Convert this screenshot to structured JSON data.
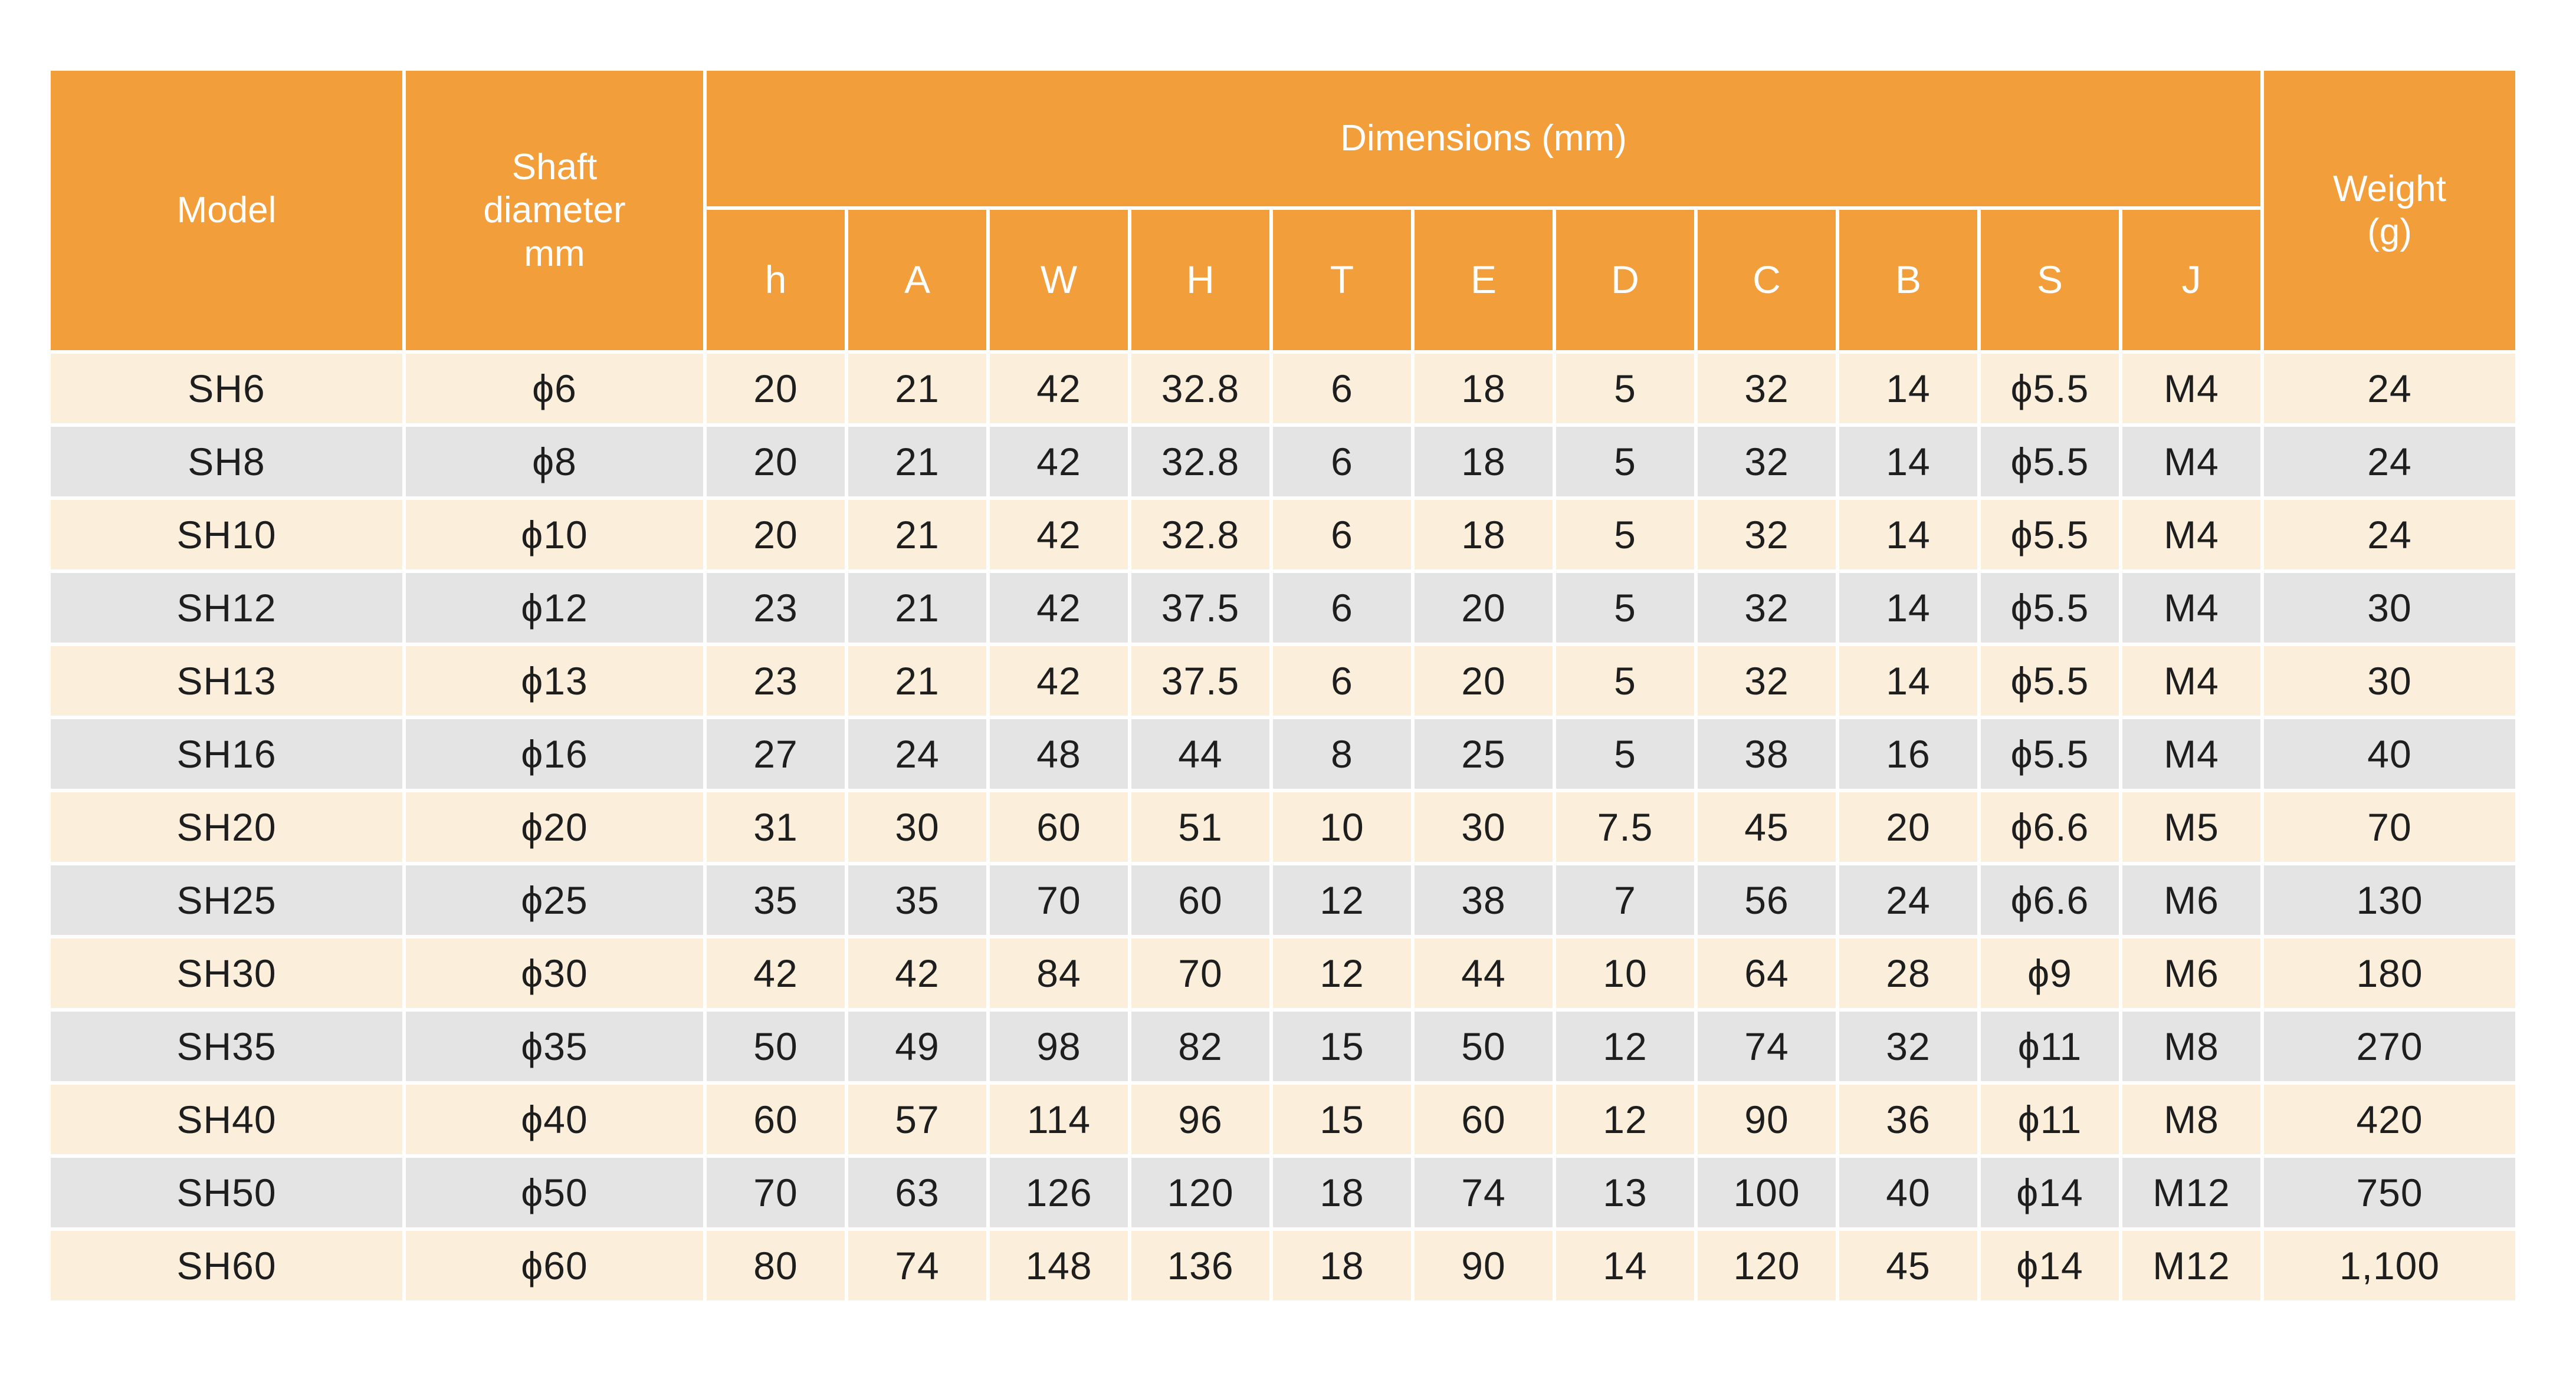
{
  "colors": {
    "page_bg": "#FFFFFF",
    "header_bg": "#F19E3B",
    "header_text": "#FFFFFF",
    "row_cream": "#FBEFDB",
    "row_gray": "#E4E4E5",
    "text_dark": "#1E1E1E"
  },
  "chart_data": {
    "type": "table",
    "header": {
      "model": "Model",
      "shaft_diameter": "Shaft\ndiameter\nmm",
      "dimensions_group": "Dimensions (mm)",
      "dimension_columns": [
        "h",
        "A",
        "W",
        "H",
        "T",
        "E",
        "D",
        "C",
        "B",
        "S",
        "J"
      ],
      "weight": "Weight\n(g)"
    },
    "rows": [
      {
        "model": "SH6",
        "shaft_diameter": "ϕ6",
        "dims": [
          "20",
          "21",
          "42",
          "32.8",
          "6",
          "18",
          "5",
          "32",
          "14",
          "ϕ5.5",
          "M4"
        ],
        "weight": "24"
      },
      {
        "model": "SH8",
        "shaft_diameter": "ϕ8",
        "dims": [
          "20",
          "21",
          "42",
          "32.8",
          "6",
          "18",
          "5",
          "32",
          "14",
          "ϕ5.5",
          "M4"
        ],
        "weight": "24"
      },
      {
        "model": "SH10",
        "shaft_diameter": "ϕ10",
        "dims": [
          "20",
          "21",
          "42",
          "32.8",
          "6",
          "18",
          "5",
          "32",
          "14",
          "ϕ5.5",
          "M4"
        ],
        "weight": "24"
      },
      {
        "model": "SH12",
        "shaft_diameter": "ϕ12",
        "dims": [
          "23",
          "21",
          "42",
          "37.5",
          "6",
          "20",
          "5",
          "32",
          "14",
          "ϕ5.5",
          "M4"
        ],
        "weight": "30"
      },
      {
        "model": "SH13",
        "shaft_diameter": "ϕ13",
        "dims": [
          "23",
          "21",
          "42",
          "37.5",
          "6",
          "20",
          "5",
          "32",
          "14",
          "ϕ5.5",
          "M4"
        ],
        "weight": "30"
      },
      {
        "model": "SH16",
        "shaft_diameter": "ϕ16",
        "dims": [
          "27",
          "24",
          "48",
          "44",
          "8",
          "25",
          "5",
          "38",
          "16",
          "ϕ5.5",
          "M4"
        ],
        "weight": "40"
      },
      {
        "model": "SH20",
        "shaft_diameter": "ϕ20",
        "dims": [
          "31",
          "30",
          "60",
          "51",
          "10",
          "30",
          "7.5",
          "45",
          "20",
          "ϕ6.6",
          "M5"
        ],
        "weight": "70"
      },
      {
        "model": "SH25",
        "shaft_diameter": "ϕ25",
        "dims": [
          "35",
          "35",
          "70",
          "60",
          "12",
          "38",
          "7",
          "56",
          "24",
          "ϕ6.6",
          "M6"
        ],
        "weight": "130"
      },
      {
        "model": "SH30",
        "shaft_diameter": "ϕ30",
        "dims": [
          "42",
          "42",
          "84",
          "70",
          "12",
          "44",
          "10",
          "64",
          "28",
          "ϕ9",
          "M6"
        ],
        "weight": "180"
      },
      {
        "model": "SH35",
        "shaft_diameter": "ϕ35",
        "dims": [
          "50",
          "49",
          "98",
          "82",
          "15",
          "50",
          "12",
          "74",
          "32",
          "ϕ11",
          "M8"
        ],
        "weight": "270"
      },
      {
        "model": "SH40",
        "shaft_diameter": "ϕ40",
        "dims": [
          "60",
          "57",
          "114",
          "96",
          "15",
          "60",
          "12",
          "90",
          "36",
          "ϕ11",
          "M8"
        ],
        "weight": "420"
      },
      {
        "model": "SH50",
        "shaft_diameter": "ϕ50",
        "dims": [
          "70",
          "63",
          "126",
          "120",
          "18",
          "74",
          "13",
          "100",
          "40",
          "ϕ14",
          "M12"
        ],
        "weight": "750"
      },
      {
        "model": "SH60",
        "shaft_diameter": "ϕ60",
        "dims": [
          "80",
          "74",
          "148",
          "136",
          "18",
          "90",
          "14",
          "120",
          "45",
          "ϕ14",
          "M12"
        ],
        "weight": "1,100"
      }
    ]
  }
}
